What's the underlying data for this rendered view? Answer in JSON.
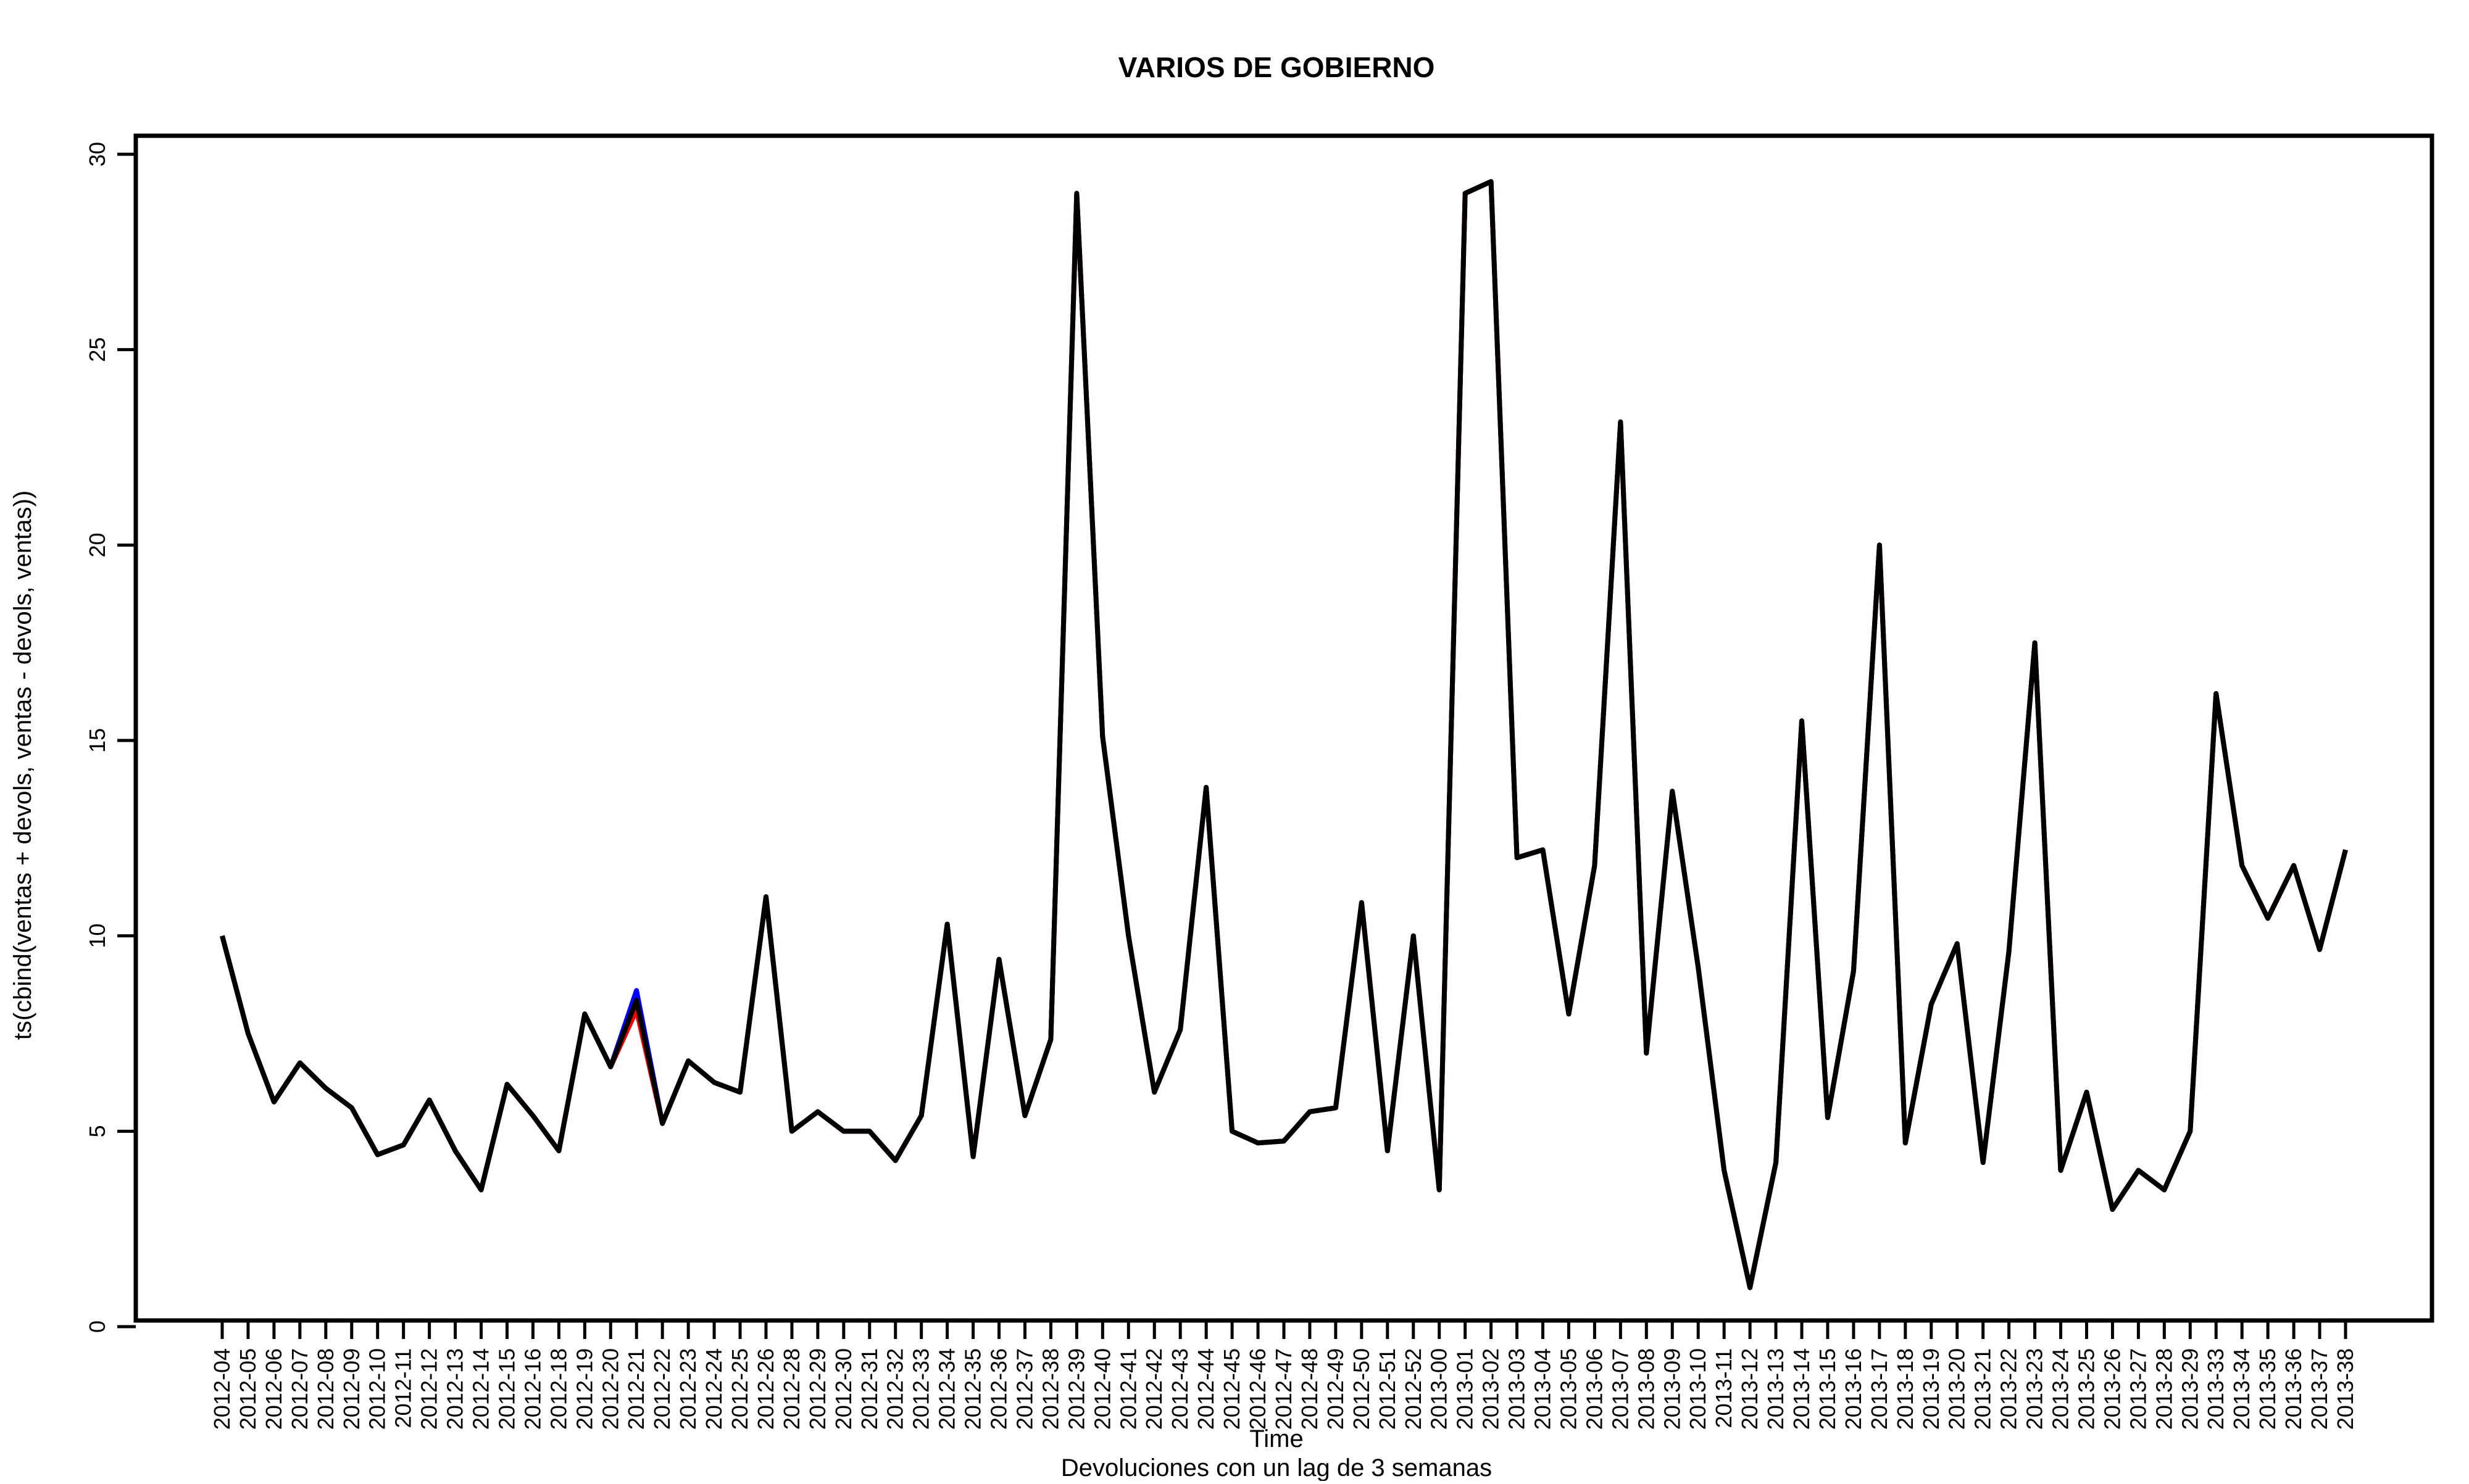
{
  "chart_data": {
    "type": "line",
    "title": "VARIOS DE GOBIERNO",
    "xlabel": "Time",
    "subtitle": "Devoluciones con un lag de 3 semanas",
    "ylabel": "ts(cbind(ventas + devols, ventas - devols, ventas))",
    "ylim": [
      0,
      30
    ],
    "yticks": [
      "0",
      "5",
      "10",
      "15",
      "20",
      "25",
      "30"
    ],
    "grid": false,
    "categories": [
      "2012-04",
      "2012-05",
      "2012-06",
      "2012-07",
      "2012-08",
      "2012-09",
      "2012-10",
      "2012-11",
      "2012-12",
      "2012-13",
      "2012-14",
      "2012-15",
      "2012-16",
      "2012-18",
      "2012-19",
      "2012-20",
      "2012-21",
      "2012-22",
      "2012-23",
      "2012-24",
      "2012-25",
      "2012-26",
      "2012-28",
      "2012-29",
      "2012-30",
      "2012-31",
      "2012-32",
      "2012-33",
      "2012-34",
      "2012-35",
      "2012-36",
      "2012-37",
      "2012-38",
      "2012-39",
      "2012-40",
      "2012-41",
      "2012-42",
      "2012-43",
      "2012-44",
      "2012-45",
      "2012-46",
      "2012-47",
      "2012-48",
      "2012-49",
      "2012-50",
      "2012-51",
      "2012-52",
      "2013-00",
      "2013-01",
      "2013-02",
      "2013-03",
      "2013-04",
      "2013-05",
      "2013-06",
      "2013-07",
      "2013-08",
      "2013-09",
      "2013-10",
      "2013-11",
      "2013-12",
      "2013-13",
      "2013-14",
      "2013-15",
      "2013-16",
      "2013-17",
      "2013-18",
      "2013-19",
      "2013-20",
      "2013-21",
      "2013-22",
      "2013-23",
      "2013-24",
      "2013-25",
      "2013-26",
      "2013-27",
      "2013-28",
      "2013-29",
      "2013-33",
      "2013-34",
      "2013-35",
      "2013-36",
      "2013-37",
      "2013-38"
    ],
    "series": [
      {
        "color": "#0000ff",
        "values": [
          10,
          7.5,
          5.75,
          6.75,
          6.1,
          5.6,
          4.4,
          4.65,
          5.8,
          4.5,
          3.5,
          6.2,
          5.4,
          4.5,
          8,
          6.65,
          8.6,
          5.2,
          6.8,
          6.25,
          6,
          11,
          5,
          5.5,
          5,
          5,
          4.25,
          5.4,
          10.3,
          4.35,
          9.4,
          5.4,
          7.35,
          29,
          15.1,
          10,
          6,
          7.6,
          13.8,
          5,
          4.7,
          4.75,
          5.5,
          5.6,
          10.85,
          4.5,
          10,
          3.5,
          29,
          29.3,
          12,
          12.2,
          8,
          11.8,
          23.15,
          7,
          13.7,
          9.2,
          4,
          1,
          4.2,
          15.5,
          5.35,
          9.1,
          20,
          4.7,
          8.25,
          9.8,
          4.2,
          9.6,
          17.5,
          4,
          6,
          3,
          4,
          3.5,
          5,
          16.2,
          11.8,
          10.45,
          11.8,
          9.65,
          12.2
        ]
      },
      {
        "color": "#ff0000",
        "values": [
          10,
          7.5,
          5.75,
          6.75,
          6.1,
          5.6,
          4.4,
          4.65,
          5.8,
          4.5,
          3.5,
          6.2,
          5.4,
          4.5,
          8,
          6.65,
          8.1,
          5.2,
          6.8,
          6.25,
          6,
          11,
          5,
          5.5,
          5,
          5,
          4.25,
          5.4,
          10.3,
          4.35,
          9.4,
          5.4,
          7.35,
          29,
          15.1,
          10,
          6,
          7.6,
          13.8,
          5,
          4.7,
          4.75,
          5.5,
          5.6,
          10.85,
          4.5,
          10,
          3.5,
          29,
          29.3,
          12,
          12.2,
          8,
          11.8,
          23.15,
          7,
          13.7,
          9.2,
          4,
          1,
          4.2,
          15.5,
          5.35,
          9.1,
          20,
          4.7,
          8.25,
          9.8,
          4.2,
          9.6,
          17.5,
          4,
          6,
          3,
          4,
          3.5,
          5,
          16.2,
          11.8,
          10.45,
          11.8,
          9.65,
          12.2
        ]
      },
      {
        "color": "#000000",
        "values": [
          10,
          7.5,
          5.75,
          6.75,
          6.1,
          5.6,
          4.4,
          4.65,
          5.8,
          4.5,
          3.5,
          6.2,
          5.4,
          4.5,
          8,
          6.65,
          8.35,
          5.2,
          6.8,
          6.25,
          6,
          11,
          5,
          5.5,
          5,
          5,
          4.25,
          5.4,
          10.3,
          4.35,
          9.4,
          5.4,
          7.35,
          29,
          15.1,
          10,
          6,
          7.6,
          13.8,
          5,
          4.7,
          4.75,
          5.5,
          5.6,
          10.85,
          4.5,
          10,
          3.5,
          29,
          29.3,
          12,
          12.2,
          8,
          11.8,
          23.15,
          7,
          13.7,
          9.2,
          4,
          1,
          4.2,
          15.5,
          5.35,
          9.1,
          20,
          4.7,
          8.25,
          9.8,
          4.2,
          9.6,
          17.5,
          4,
          6,
          3,
          4,
          3.5,
          5,
          16.2,
          11.8,
          10.45,
          11.8,
          9.65,
          12.2
        ]
      }
    ]
  }
}
